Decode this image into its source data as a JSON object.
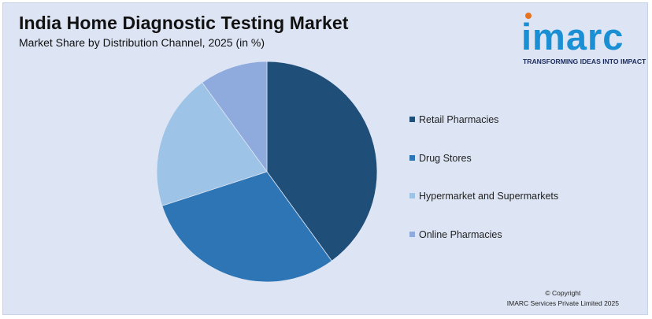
{
  "header": {
    "title": "India Home Diagnostic Testing Market",
    "subtitle": "Market Share by Distribution Channel, 2025 (in %)"
  },
  "logo": {
    "word": "imarc",
    "tagline": "TRANSFORMING IDEAS INTO IMPACT",
    "color": "#1a8fd3",
    "accent": "#e8731f"
  },
  "chart_data": {
    "type": "pie",
    "title": "India Home Diagnostic Testing Market",
    "subtitle": "Market Share by Distribution Channel, 2025 (in %)",
    "categories": [
      "Retail Pharmacies",
      "Drug Stores",
      "Hypermarket and Supermarkets",
      "Online Pharmacies"
    ],
    "values": [
      40,
      30,
      20,
      10
    ],
    "colors": [
      "#1f4e79",
      "#2e75b6",
      "#9dc3e6",
      "#8faadc"
    ],
    "start_angle": "12 o'clock",
    "direction": "clockwise",
    "legend_position": "right"
  },
  "footer": {
    "copyright_line1": "© Copyright",
    "copyright_line2": "IMARC Services Private Limited 2025"
  }
}
